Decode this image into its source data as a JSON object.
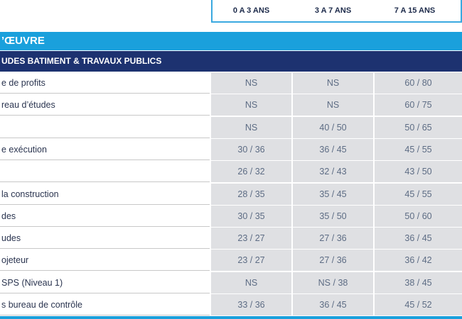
{
  "header": {
    "columns": [
      "0 A 3 ANS",
      "3 A 7 ANS",
      "7 A 15 ANS"
    ]
  },
  "section": {
    "title": "’ŒUVRE"
  },
  "subsection": {
    "title": "UDES BATIMENT & TRAVAUX PUBLICS"
  },
  "table": {
    "rows": [
      {
        "label": "e de profits",
        "values": [
          "NS",
          "NS",
          "60 / 80"
        ]
      },
      {
        "label": "reau d’études",
        "values": [
          "NS",
          "NS",
          "60 / 75"
        ]
      },
      {
        "label": null,
        "values": [
          "NS",
          "40 / 50",
          "50 / 65"
        ]
      },
      {
        "label": "e exécution",
        "values": [
          "30 / 36",
          "36 / 45",
          "45 / 55"
        ]
      },
      {
        "label": null,
        "values": [
          "26 / 32",
          "32 / 43",
          "43 / 50"
        ]
      },
      {
        "label": "la construction",
        "values": [
          "28 / 35",
          "35 / 45",
          "45 / 55"
        ]
      },
      {
        "label": "des",
        "values": [
          "30 / 35",
          "35 / 50",
          "50 / 60"
        ]
      },
      {
        "label": "udes",
        "values": [
          "23 / 27",
          "27 / 36",
          "36 / 45"
        ]
      },
      {
        "label": "ojeteur",
        "values": [
          "23 / 27",
          "27 / 36",
          "36 / 42"
        ]
      },
      {
        "label": "SPS (Niveau 1)",
        "values": [
          "NS",
          "NS / 38",
          "38 / 45"
        ]
      },
      {
        "label": "s bureau de contrôle",
        "values": [
          "33 / 36",
          "36 / 45",
          "45 / 52"
        ]
      }
    ]
  }
}
